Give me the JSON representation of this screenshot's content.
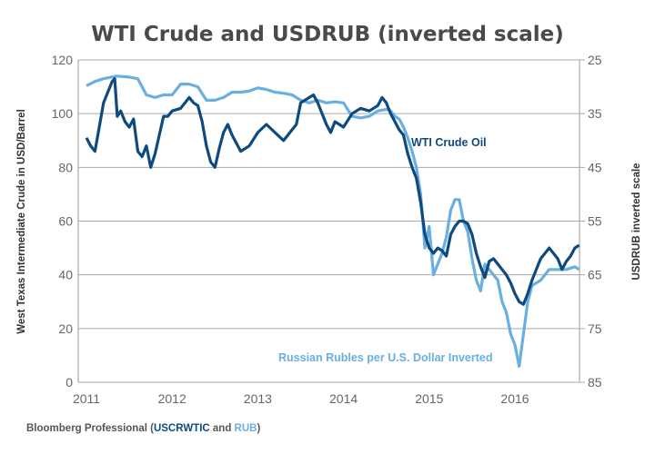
{
  "chart_data": {
    "type": "line",
    "title": "WTI Crude and USDRUB (inverted scale)",
    "xlabel": "",
    "ylabel": "West Texas Intermediate Crude in USD/Barrel",
    "y2label": "USDRUB inverted scale",
    "xlim": [
      2010.9,
      2016.8
    ],
    "ylim": [
      0,
      120
    ],
    "y2lim": [
      85,
      25
    ],
    "x_ticks": [
      "2011",
      "2012",
      "2013",
      "2014",
      "2015",
      "2016"
    ],
    "y_ticks": [
      "0",
      "20",
      "40",
      "60",
      "80",
      "100",
      "120"
    ],
    "y2_ticks": [
      "85",
      "75",
      "65",
      "55",
      "45",
      "35",
      "25"
    ],
    "grid": true,
    "source": {
      "prefix": "Bloomberg Professional (",
      "wti": "USCRWTIC",
      "and": " and ",
      "rub": "RUB",
      "suffix": ")"
    },
    "series": [
      {
        "name": "WTI Crude Oil",
        "axis": "left",
        "color": "#0e4a7e",
        "x": [
          2011.0,
          2011.05,
          2011.1,
          2011.15,
          2011.2,
          2011.25,
          2011.3,
          2011.33,
          2011.36,
          2011.4,
          2011.45,
          2011.5,
          2011.55,
          2011.6,
          2011.65,
          2011.7,
          2011.75,
          2011.8,
          2011.85,
          2011.9,
          2011.95,
          2012.0,
          2012.1,
          2012.2,
          2012.25,
          2012.3,
          2012.35,
          2012.4,
          2012.45,
          2012.5,
          2012.55,
          2012.6,
          2012.65,
          2012.7,
          2012.8,
          2012.9,
          2013.0,
          2013.1,
          2013.2,
          2013.3,
          2013.4,
          2013.45,
          2013.5,
          2013.6,
          2013.65,
          2013.7,
          2013.8,
          2013.85,
          2013.9,
          2014.0,
          2014.1,
          2014.2,
          2014.3,
          2014.4,
          2014.45,
          2014.5,
          2014.55,
          2014.6,
          2014.65,
          2014.7,
          2014.75,
          2014.8,
          2014.85,
          2014.9,
          2014.95,
          2015.0,
          2015.05,
          2015.1,
          2015.15,
          2015.2,
          2015.25,
          2015.3,
          2015.35,
          2015.4,
          2015.45,
          2015.5,
          2015.55,
          2015.6,
          2015.65,
          2015.7,
          2015.75,
          2015.8,
          2015.85,
          2015.9,
          2015.95,
          2016.0,
          2016.05,
          2016.1,
          2016.15,
          2016.2,
          2016.25,
          2016.3,
          2016.35,
          2016.4,
          2016.45,
          2016.5,
          2016.55,
          2016.6,
          2016.65,
          2016.7,
          2016.75
        ],
        "values": [
          91,
          88,
          86,
          95,
          104,
          108,
          112,
          113,
          99,
          101,
          97,
          95,
          98,
          86,
          84,
          88,
          80,
          85,
          92,
          99,
          99,
          101,
          102,
          106,
          104,
          103,
          97,
          88,
          82,
          80,
          87,
          93,
          96,
          92,
          86,
          88,
          93,
          96,
          93,
          90,
          94,
          96,
          104,
          106,
          107,
          104,
          96,
          93,
          97,
          95,
          100,
          102,
          101,
          103,
          106,
          104,
          100,
          97,
          94,
          92,
          85,
          80,
          76,
          67,
          55,
          50,
          48,
          50,
          49,
          47,
          55,
          58,
          60,
          60,
          59,
          55,
          48,
          43,
          39,
          45,
          46,
          44,
          42,
          40,
          37,
          33,
          30,
          29,
          33,
          38,
          42,
          46,
          48,
          50,
          48,
          46,
          42,
          45,
          47,
          50,
          51
        ]
      },
      {
        "name": "Russian Rubles per U.S. Dollar Inverted",
        "axis": "right",
        "color": "#6aafdf",
        "x": [
          2011.0,
          2011.1,
          2011.2,
          2011.35,
          2011.5,
          2011.6,
          2011.7,
          2011.8,
          2011.9,
          2012.0,
          2012.1,
          2012.2,
          2012.3,
          2012.4,
          2012.5,
          2012.6,
          2012.7,
          2012.8,
          2012.9,
          2013.0,
          2013.1,
          2013.2,
          2013.3,
          2013.4,
          2013.5,
          2013.6,
          2013.7,
          2013.8,
          2013.9,
          2014.0,
          2014.1,
          2014.2,
          2014.3,
          2014.4,
          2014.5,
          2014.55,
          2014.6,
          2014.65,
          2014.7,
          2014.75,
          2014.8,
          2014.85,
          2014.9,
          2014.95,
          2015.0,
          2015.05,
          2015.1,
          2015.15,
          2015.2,
          2015.25,
          2015.3,
          2015.35,
          2015.4,
          2015.45,
          2015.5,
          2015.55,
          2015.6,
          2015.65,
          2015.7,
          2015.75,
          2015.8,
          2015.85,
          2015.9,
          2015.95,
          2016.0,
          2016.05,
          2016.1,
          2016.15,
          2016.2,
          2016.3,
          2016.4,
          2016.5,
          2016.6,
          2016.7,
          2016.75
        ],
        "values": [
          29.8,
          29,
          28.5,
          28,
          28.2,
          28.5,
          31.5,
          32,
          31.5,
          31.5,
          29.5,
          29.5,
          30,
          32.5,
          32.5,
          32,
          31,
          31,
          30.8,
          30.2,
          30.5,
          31,
          31.2,
          31.5,
          32.5,
          33,
          32.5,
          33,
          32.8,
          33,
          35.5,
          35.8,
          35.5,
          34.5,
          34.2,
          34.5,
          35.5,
          36,
          37.5,
          39.5,
          42,
          45,
          50,
          60,
          56,
          65,
          63,
          61,
          58,
          53,
          51,
          51,
          55,
          57,
          62,
          66,
          68,
          63,
          64,
          65,
          66,
          70,
          72,
          76,
          78,
          82,
          76,
          70,
          67,
          66,
          64,
          64,
          64,
          63.5,
          64
        ]
      }
    ]
  }
}
